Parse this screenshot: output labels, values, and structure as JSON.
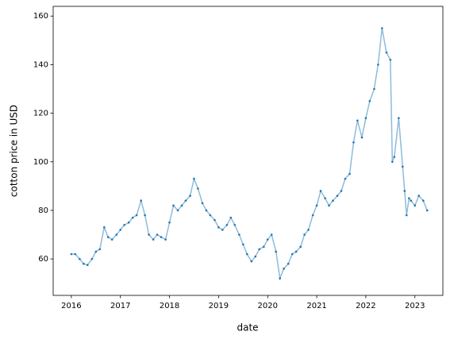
{
  "chart_data": {
    "type": "line",
    "xlabel": "date",
    "ylabel": "cotton price in USD",
    "color": "#1f77b4",
    "grid": false,
    "markers": true,
    "x": [
      2016.0,
      2016.08,
      2016.17,
      2016.25,
      2016.33,
      2016.42,
      2016.5,
      2016.58,
      2016.67,
      2016.75,
      2016.83,
      2016.92,
      2017.0,
      2017.08,
      2017.17,
      2017.25,
      2017.33,
      2017.42,
      2017.5,
      2017.58,
      2017.67,
      2017.75,
      2017.83,
      2017.92,
      2018.0,
      2018.08,
      2018.17,
      2018.25,
      2018.33,
      2018.42,
      2018.5,
      2018.58,
      2018.67,
      2018.75,
      2018.83,
      2018.92,
      2019.0,
      2019.08,
      2019.17,
      2019.25,
      2019.33,
      2019.42,
      2019.5,
      2019.58,
      2019.67,
      2019.75,
      2019.83,
      2019.92,
      2020.0,
      2020.08,
      2020.17,
      2020.25,
      2020.33,
      2020.42,
      2020.5,
      2020.58,
      2020.67,
      2020.75,
      2020.83,
      2020.92,
      2021.0,
      2021.08,
      2021.17,
      2021.25,
      2021.33,
      2021.42,
      2021.5,
      2021.58,
      2021.67,
      2021.75,
      2021.83,
      2021.92,
      2022.0,
      2022.08,
      2022.17,
      2022.25,
      2022.33,
      2022.42,
      2022.5,
      2022.54,
      2022.58,
      2022.67,
      2022.75,
      2022.79,
      2022.83,
      2022.88,
      2022.92,
      2023.0,
      2023.08,
      2023.17,
      2023.25
    ],
    "values": [
      62,
      62,
      60,
      58,
      57.5,
      60,
      63,
      64,
      73,
      69,
      68,
      70,
      72,
      74,
      75,
      77,
      78,
      84,
      78,
      70,
      68,
      70,
      69,
      68,
      75,
      82,
      80,
      82,
      84,
      86,
      93,
      89,
      83,
      80,
      78,
      76,
      73,
      72,
      74,
      77,
      74,
      70,
      66,
      62,
      59,
      61,
      64,
      65,
      68,
      70,
      63,
      52,
      56,
      58,
      62,
      63,
      65,
      70,
      72,
      78,
      82,
      88,
      85,
      82,
      84,
      86,
      88,
      93,
      95,
      108,
      117,
      110,
      118,
      125,
      130,
      140,
      155,
      145,
      142,
      100,
      102,
      118,
      98,
      88,
      78,
      85,
      84,
      82,
      86,
      84,
      80
    ],
    "xlim": [
      2015.63,
      2023.57
    ],
    "xticks": [
      2016,
      2017,
      2018,
      2019,
      2020,
      2021,
      2022,
      2023
    ],
    "ylim": [
      45,
      164
    ],
    "yticks": [
      60,
      80,
      100,
      120,
      140,
      160
    ]
  }
}
